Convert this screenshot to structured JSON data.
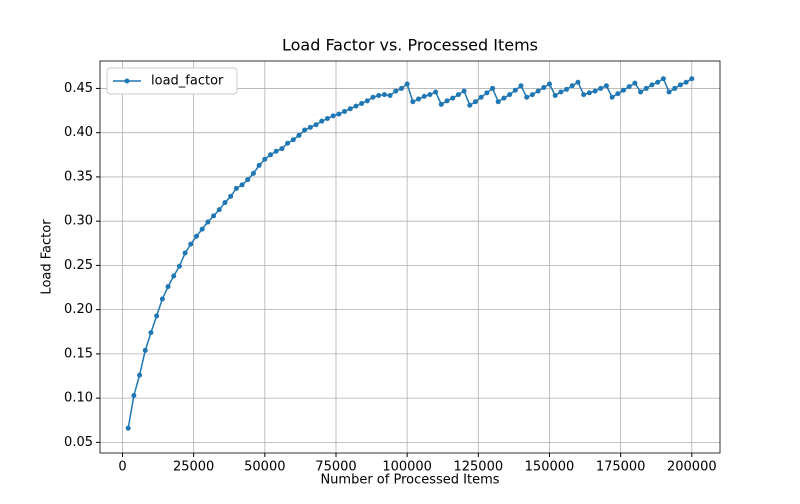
{
  "chart_data": {
    "type": "line",
    "title": "Load Factor vs. Processed Items",
    "x_label": "Number of Processed Items",
    "y_label": "Load Factor",
    "x": [
      2000,
      4000,
      6000,
      8000,
      10000,
      12000,
      14000,
      16000,
      18000,
      20000,
      22000,
      24000,
      26000,
      28000,
      30000,
      32000,
      34000,
      36000,
      38000,
      40000,
      42000,
      44000,
      46000,
      48000,
      50000,
      52000,
      54000,
      56000,
      58000,
      60000,
      62000,
      64000,
      66000,
      68000,
      70000,
      72000,
      74000,
      76000,
      78000,
      80000,
      82000,
      84000,
      86000,
      88000,
      90000,
      92000,
      94000,
      96000,
      98000,
      100000,
      102000,
      104000,
      106000,
      108000,
      110000,
      112000,
      114000,
      116000,
      118000,
      120000,
      122000,
      124000,
      126000,
      128000,
      130000,
      132000,
      134000,
      136000,
      138000,
      140000,
      142000,
      144000,
      146000,
      148000,
      150000,
      152000,
      154000,
      156000,
      158000,
      160000,
      162000,
      164000,
      166000,
      168000,
      170000,
      172000,
      174000,
      176000,
      178000,
      180000,
      182000,
      184000,
      186000,
      188000,
      190000,
      192000,
      194000,
      196000,
      198000,
      200000
    ],
    "series": [
      {
        "name": "load_factor",
        "color": "#1f77b4",
        "values": [
          0.066,
          0.103,
          0.126,
          0.154,
          0.174,
          0.193,
          0.212,
          0.226,
          0.238,
          0.249,
          0.264,
          0.274,
          0.283,
          0.291,
          0.299,
          0.306,
          0.313,
          0.321,
          0.328,
          0.337,
          0.341,
          0.347,
          0.354,
          0.363,
          0.37,
          0.375,
          0.379,
          0.382,
          0.388,
          0.392,
          0.397,
          0.403,
          0.406,
          0.409,
          0.413,
          0.416,
          0.419,
          0.421,
          0.424,
          0.427,
          0.43,
          0.433,
          0.436,
          0.44,
          0.442,
          0.443,
          0.442,
          0.447,
          0.45,
          0.455,
          0.435,
          0.438,
          0.441,
          0.443,
          0.446,
          0.432,
          0.436,
          0.439,
          0.443,
          0.447,
          0.431,
          0.435,
          0.44,
          0.445,
          0.45,
          0.435,
          0.439,
          0.443,
          0.448,
          0.453,
          0.44,
          0.443,
          0.447,
          0.451,
          0.455,
          0.442,
          0.446,
          0.449,
          0.453,
          0.457,
          0.443,
          0.445,
          0.447,
          0.45,
          0.453,
          0.44,
          0.444,
          0.448,
          0.452,
          0.456,
          0.446,
          0.45,
          0.454,
          0.457,
          0.461,
          0.446,
          0.45,
          0.454,
          0.457,
          0.461
        ]
      }
    ],
    "xlim": [
      -7900,
      209900
    ],
    "ylim": [
      0.038,
      0.481
    ],
    "xticks": [
      0,
      25000,
      50000,
      75000,
      100000,
      125000,
      150000,
      175000,
      200000
    ],
    "yticks": [
      0.05,
      {
        "value": 0.1,
        "label": "0.10"
      },
      0.15,
      {
        "value": 0.2,
        "label": "0.20"
      },
      0.25,
      {
        "value": 0.3,
        "label": "0.30"
      },
      0.35,
      {
        "value": 0.4,
        "label": "0.40"
      },
      0.45
    ],
    "grid": true,
    "legend": "upper left"
  }
}
